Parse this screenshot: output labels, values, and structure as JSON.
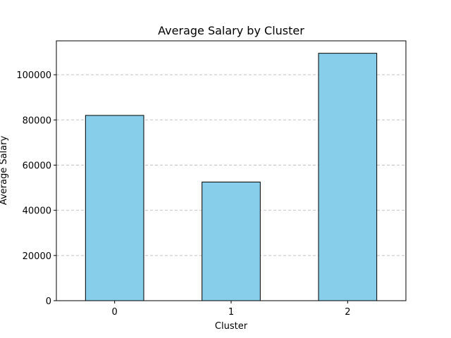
{
  "chart_data": {
    "type": "bar",
    "title": "Average Salary by Cluster",
    "xlabel": "Cluster",
    "ylabel": "Average Salary",
    "categories": [
      "0",
      "1",
      "2"
    ],
    "values": [
      82000,
      52500,
      109500
    ],
    "ylim": [
      0,
      115000
    ],
    "yticks": [
      0,
      20000,
      40000,
      60000,
      80000,
      100000
    ],
    "ytick_labels": [
      "0",
      "20000",
      "40000",
      "60000",
      "80000",
      "100000"
    ],
    "grid": "y-dashed",
    "bar_color": "#87ceeb",
    "bar_edge_color": "#000000",
    "grid_color": "#c4c4c4"
  }
}
